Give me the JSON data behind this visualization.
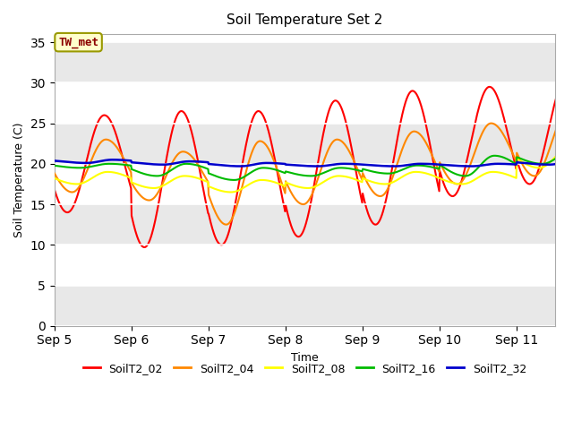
{
  "title": "Soil Temperature Set 2",
  "xlabel": "Time",
  "ylabel": "Soil Temperature (C)",
  "ylim": [
    0,
    36
  ],
  "yticks": [
    0,
    5,
    10,
    15,
    20,
    25,
    30,
    35
  ],
  "xlim": [
    0,
    6.5
  ],
  "day_ticks": [
    0,
    1,
    2,
    3,
    4,
    5,
    6
  ],
  "day_labels": [
    "Sep 5",
    "Sep 6",
    "Sep 7",
    "Sep 8",
    "Sep 9",
    "Sep 10",
    "Sep 11"
  ],
  "annotation_text": "TW_met",
  "annotation_color": "#8b0000",
  "annotation_bg": "#ffffcc",
  "annotation_border": "#999900",
  "series_colors": {
    "SoilT2_02": "#ff0000",
    "SoilT2_04": "#ff8800",
    "SoilT2_08": "#ffff00",
    "SoilT2_16": "#00bb00",
    "SoilT2_32": "#0000cc"
  },
  "fig_bg": "#ffffff",
  "plot_bg": "#ffffff",
  "grid_color": "#cccccc",
  "band_color": "#e8e8e8",
  "title_fontsize": 11,
  "peaks_02": [
    26.0,
    26.5,
    26.5,
    27.8,
    29.0,
    29.5,
    30.5
  ],
  "troughs_02": [
    14.0,
    9.7,
    10.0,
    11.0,
    12.5,
    16.0,
    17.5
  ],
  "peaks_04": [
    23.0,
    21.5,
    22.8,
    23.0,
    24.0,
    25.0,
    26.5
  ],
  "troughs_04": [
    16.5,
    15.5,
    12.5,
    15.0,
    16.0,
    17.5,
    18.5
  ],
  "peaks_08": [
    19.0,
    18.5,
    18.0,
    18.5,
    19.0,
    19.0,
    22.0
  ],
  "troughs_08": [
    17.5,
    17.0,
    16.5,
    17.0,
    17.5,
    17.5,
    19.5
  ],
  "peaks_16": [
    20.0,
    20.0,
    19.5,
    19.5,
    19.8,
    21.0,
    21.5
  ],
  "troughs_16": [
    19.5,
    18.5,
    18.0,
    18.5,
    18.8,
    18.5,
    20.0
  ],
  "peaks_32": [
    20.5,
    20.3,
    20.1,
    20.0,
    20.0,
    20.0,
    20.3
  ],
  "troughs_32": [
    20.1,
    19.9,
    19.7,
    19.7,
    19.7,
    19.7,
    19.9
  ],
  "peak_hour_02": 15.5,
  "trough_hour_02": 4.0,
  "peak_hour_04": 16.0,
  "trough_hour_04": 5.5,
  "peak_hour_08": 16.5,
  "trough_hour_08": 7.0,
  "peak_hour_16": 17.0,
  "trough_hour_16": 8.0,
  "peak_hour_32": 18.0,
  "trough_hour_32": 10.0,
  "rise_sharpness": 4.0,
  "fall_sharpness": 1.5
}
